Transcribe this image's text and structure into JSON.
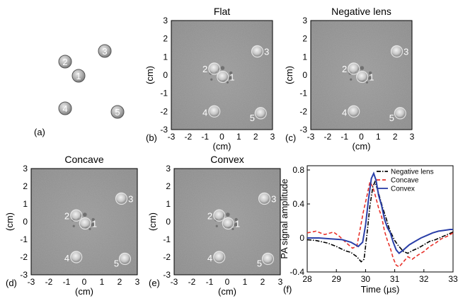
{
  "panel_a": {
    "label": "(a)",
    "markers": [
      {
        "n": "1"
      },
      {
        "n": "2"
      },
      {
        "n": "3"
      },
      {
        "n": "4"
      },
      {
        "n": "5"
      }
    ]
  },
  "image_panels": [
    {
      "label": "(b)",
      "title": "Flat",
      "xlabel": "(cm)",
      "ylabel": "(cm)",
      "marker_color": "#ffffff"
    },
    {
      "label": "(c)",
      "title": "Negative lens",
      "xlabel": "(cm)",
      "ylabel": "(cm)",
      "marker_color": "#ffffff"
    },
    {
      "label": "(d)",
      "title": "Concave",
      "xlabel": "(cm)",
      "ylabel": "(cm)",
      "marker_color": "#ffffff"
    },
    {
      "label": "(e)",
      "title": "Convex",
      "xlabel": "(cm)",
      "ylabel": "(cm)",
      "marker_color": "#ffffff"
    }
  ],
  "image_ticks": [
    "-3",
    "-2",
    "-1",
    "0",
    "1",
    "2",
    "3"
  ],
  "line_panel": {
    "label": "(f)"
  },
  "chart_data": [
    {
      "type": "line",
      "panel": "(f)",
      "title": "",
      "xlabel": "Time (µs)",
      "ylabel": "PA signal amplitude",
      "xlim": [
        28,
        33
      ],
      "ylim": [
        -0.4,
        0.85
      ],
      "xticks": [
        "28",
        "29",
        "30",
        "31",
        "32",
        "33"
      ],
      "yticks": [
        "-0.4",
        "0",
        "0.4",
        "0.8"
      ],
      "grid": false,
      "legend_position": "top-right",
      "series": [
        {
          "name": "Negative lens",
          "color": "#000000",
          "style": "dashdot",
          "x": [
            28.0,
            28.3,
            28.7,
            29.0,
            29.3,
            29.5,
            29.7,
            29.85,
            29.95,
            30.05,
            30.15,
            30.25,
            30.32,
            30.4,
            30.5,
            30.6,
            30.7,
            30.8,
            30.9,
            31.0,
            31.1,
            31.2,
            31.3,
            31.45,
            31.6,
            31.8,
            32.0,
            32.2,
            32.4,
            32.6,
            32.8,
            33.0
          ],
          "y": [
            -0.02,
            -0.03,
            -0.06,
            -0.1,
            -0.15,
            -0.17,
            -0.22,
            -0.28,
            -0.25,
            0.05,
            0.38,
            0.6,
            0.66,
            0.58,
            0.46,
            0.34,
            0.24,
            0.12,
            0.04,
            -0.03,
            -0.08,
            -0.12,
            -0.16,
            -0.18,
            -0.15,
            -0.12,
            -0.08,
            -0.04,
            -0.02,
            0.01,
            0.04,
            0.07
          ]
        },
        {
          "name": "Concave",
          "color": "#e8322b",
          "style": "dashed",
          "x": [
            28.0,
            28.3,
            28.6,
            28.9,
            29.1,
            29.35,
            29.55,
            29.7,
            29.8,
            29.92,
            30.05,
            30.15,
            30.25,
            30.35,
            30.45,
            30.55,
            30.65,
            30.75,
            30.85,
            30.95,
            31.05,
            31.15,
            31.3,
            31.45,
            31.6,
            31.8,
            32.0,
            32.2,
            32.4,
            32.6,
            32.8,
            33.0
          ],
          "y": [
            0.06,
            0.08,
            0.04,
            0.07,
            0.02,
            -0.06,
            -0.12,
            -0.1,
            0.08,
            0.3,
            0.5,
            0.66,
            0.6,
            0.48,
            0.35,
            0.25,
            0.08,
            -0.03,
            -0.12,
            -0.24,
            -0.32,
            -0.34,
            -0.28,
            -0.22,
            -0.25,
            -0.2,
            -0.16,
            -0.1,
            -0.06,
            -0.01,
            0.02,
            0.06
          ]
        },
        {
          "name": "Convex",
          "color": "#2a3fa8",
          "style": "solid",
          "x": [
            28.0,
            28.4,
            28.8,
            29.2,
            29.5,
            29.75,
            29.9,
            30.0,
            30.1,
            30.2,
            30.28,
            30.36,
            30.45,
            30.55,
            30.65,
            30.75,
            30.85,
            30.95,
            31.05,
            31.15,
            31.3,
            31.5,
            31.7,
            31.9,
            32.1,
            32.3,
            32.5,
            32.7,
            32.9,
            33.0
          ],
          "y": [
            0.0,
            0.0,
            -0.01,
            -0.02,
            -0.05,
            -0.1,
            -0.05,
            0.15,
            0.45,
            0.7,
            0.76,
            0.68,
            0.5,
            0.38,
            0.22,
            0.12,
            0.06,
            -0.05,
            -0.14,
            -0.18,
            -0.14,
            -0.08,
            -0.04,
            0.0,
            0.03,
            0.06,
            0.08,
            0.09,
            0.1,
            0.1
          ]
        }
      ]
    }
  ]
}
